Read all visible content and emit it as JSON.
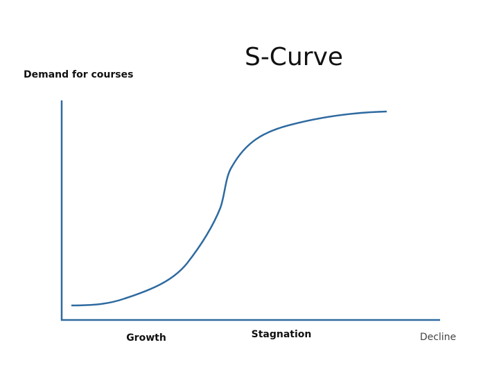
{
  "title": "S-Curve",
  "y_axis": {
    "label": "Demand for courses"
  },
  "x_axis": {
    "labels": [
      "Growth",
      "Stagnation",
      "Decline"
    ]
  }
}
